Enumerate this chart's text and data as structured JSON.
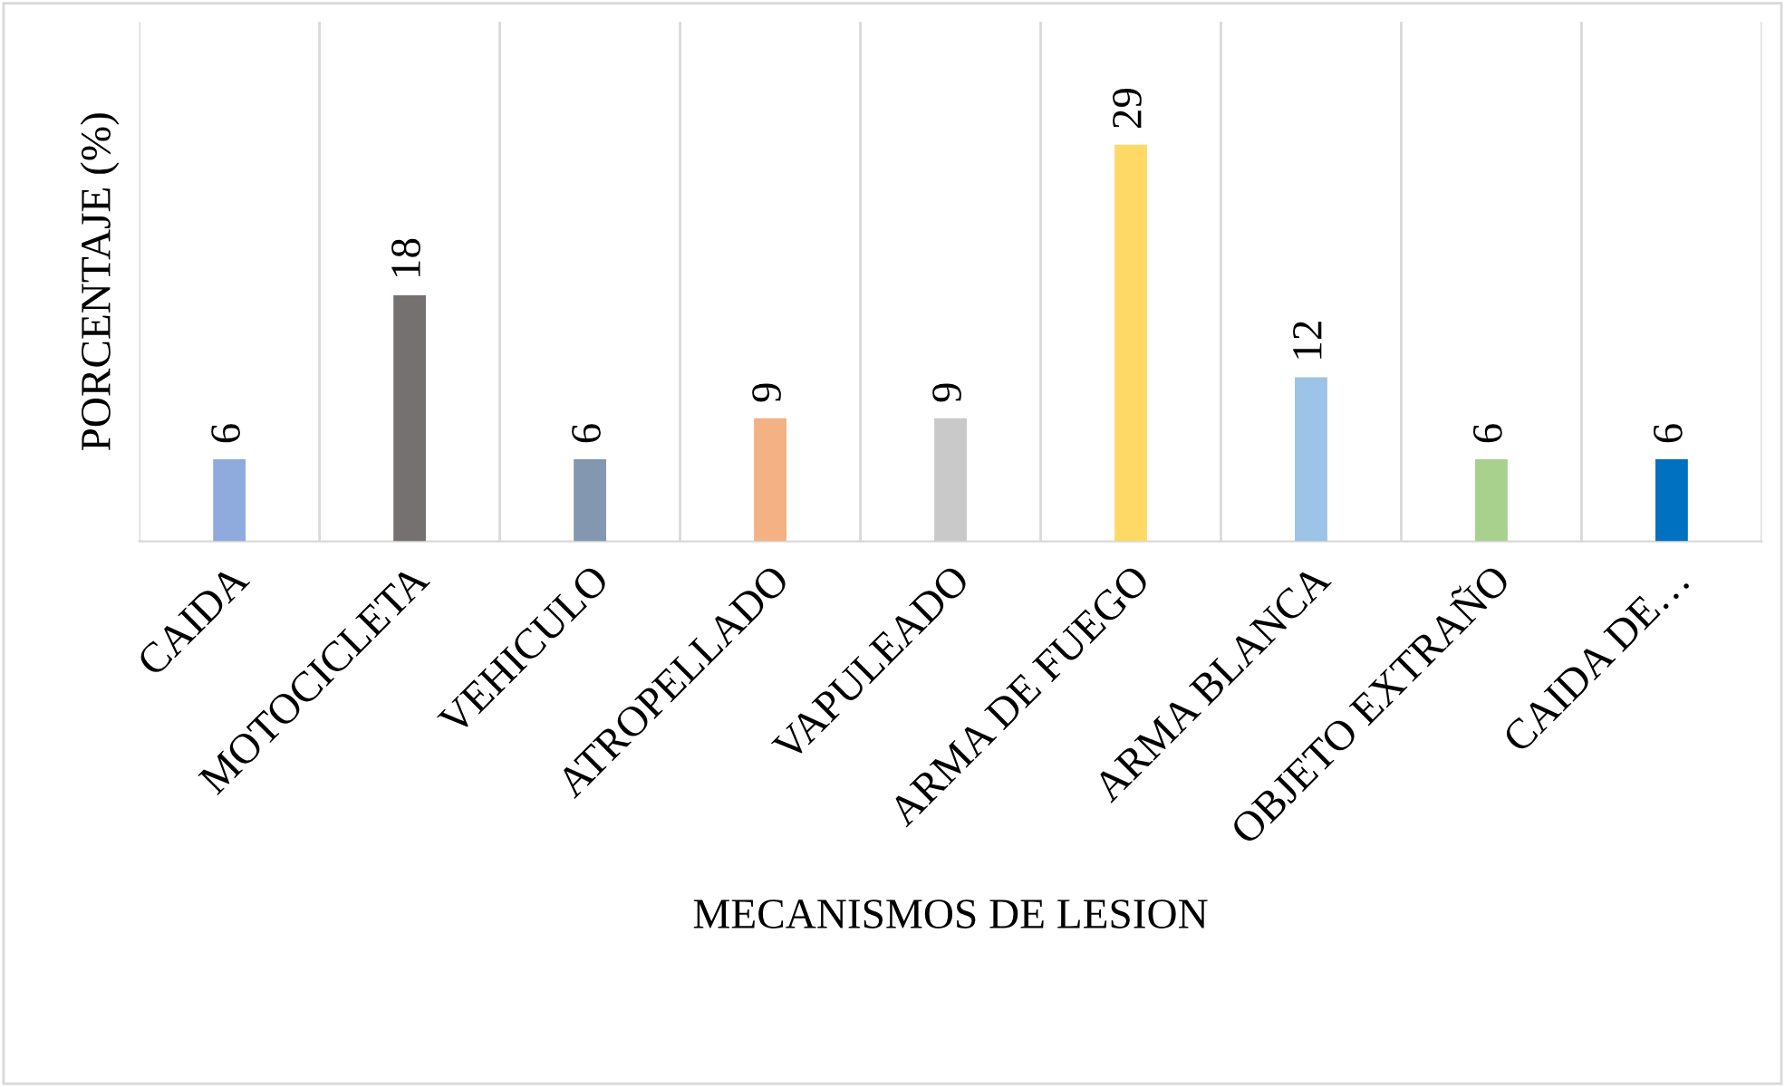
{
  "chart_data": {
    "type": "bar",
    "xlabel": "MECANISMOS DE LESION",
    "ylabel": "PORCENTAJE (%)",
    "categories": [
      "CAIDA",
      "MOTOCICLETA",
      "VEHICULO",
      "ATROPELLADO",
      "VAPULEADO",
      "ARMA DE FUEGO",
      "ARMA BLANCA",
      "OBJETO EXTRAÑO",
      "CAIDA DE…"
    ],
    "values": [
      6,
      18,
      6,
      9,
      9,
      29,
      12,
      6,
      6
    ],
    "colors": [
      "#8faadc",
      "#767171",
      "#8497b0",
      "#f4b183",
      "#c9c9c9",
      "#ffd966",
      "#9dc3e6",
      "#a9d18e",
      "#0070c0"
    ],
    "ylim": [
      0,
      38
    ],
    "grid": "x",
    "data_labels": true
  }
}
